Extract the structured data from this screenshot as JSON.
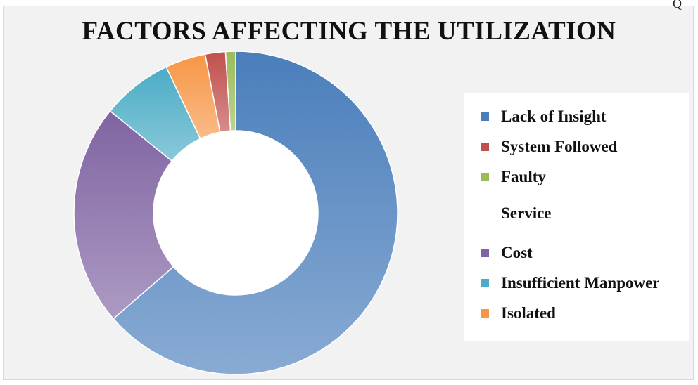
{
  "corner_mark": "Q",
  "chart_data": {
    "type": "pie",
    "style": "donut",
    "title": "FACTORS AFFECTING THE UTILIZATION",
    "legend_position": "right",
    "categories": [
      "Lack of Insight",
      "System Followed",
      "Faulty Service",
      "Cost",
      "Insufficient Manpower",
      "Isolated"
    ],
    "values": [
      63,
      2,
      1,
      22,
      7,
      4
    ],
    "colors": [
      "#4a7ebb",
      "#c0504d",
      "#9bbb59",
      "#8064a2",
      "#4bacc6",
      "#f79646"
    ],
    "legend_order": [
      0,
      1,
      2,
      3,
      4,
      5
    ]
  }
}
